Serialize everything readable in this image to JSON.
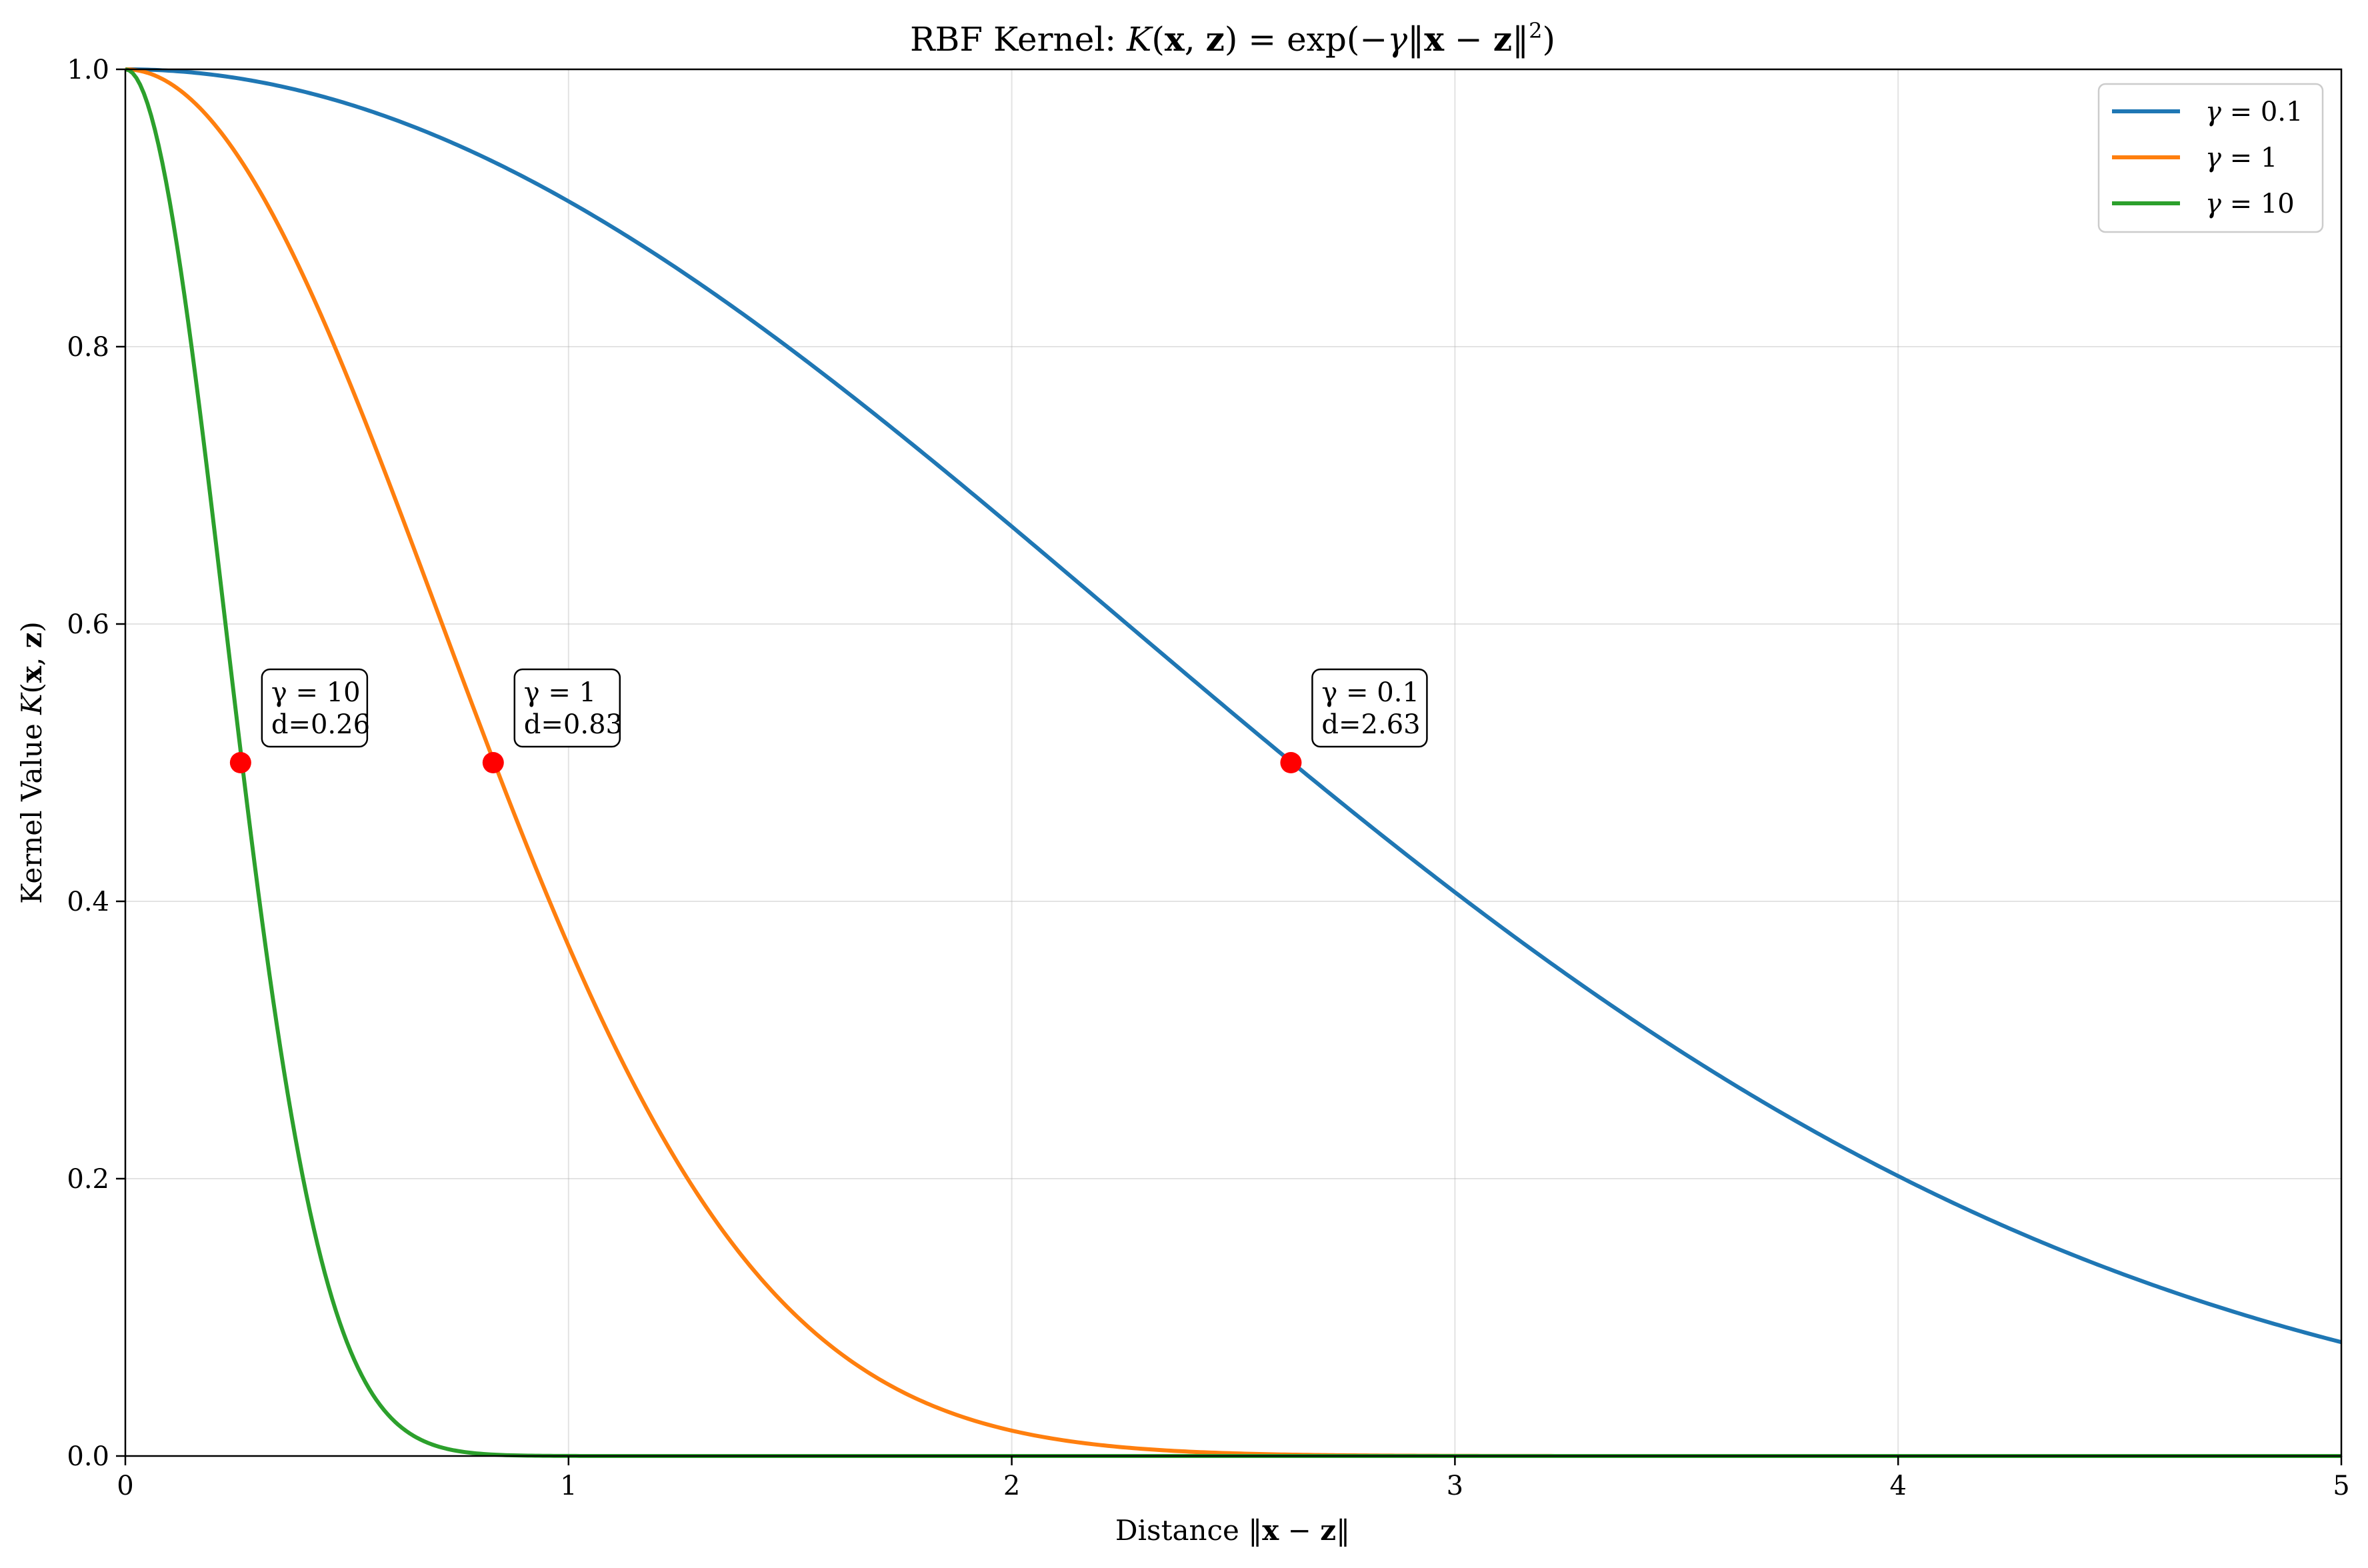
{
  "chart_data": {
    "type": "line",
    "title": {
      "prefix": "RBF Kernel: ",
      "formula_parts": [
        "K",
        "(",
        "x",
        ", ",
        "z",
        ") = exp(−",
        "γ",
        "‖",
        "x",
        " − ",
        "z",
        "‖",
        "2",
        ")"
      ]
    },
    "xlabel": {
      "prefix": "Distance ",
      "formula_parts": [
        "‖",
        "x",
        " − ",
        "z",
        "‖"
      ]
    },
    "ylabel": {
      "prefix": "Kernel Value ",
      "formula_parts": [
        "K",
        "(",
        "x",
        ", ",
        "z",
        ")"
      ]
    },
    "xlim": [
      0,
      5
    ],
    "ylim": [
      0,
      1
    ],
    "xticks": [
      0,
      1,
      2,
      3,
      4,
      5
    ],
    "xtick_labels": [
      "0",
      "1",
      "2",
      "3",
      "4",
      "5"
    ],
    "yticks": [
      0,
      0.2,
      0.4,
      0.6,
      0.8,
      1.0
    ],
    "ytick_labels": [
      "0.0",
      "0.2",
      "0.4",
      "0.6",
      "0.8",
      "1.0"
    ],
    "grid": true,
    "legend_position": "top-right",
    "series": [
      {
        "name": "γ = 0.1",
        "gamma_symbol": "γ",
        "gamma_value": "0.1",
        "gamma": 0.1,
        "color": "#1f77b4"
      },
      {
        "name": "γ = 1",
        "gamma_symbol": "γ",
        "gamma_value": "1",
        "gamma": 1,
        "color": "#ff7f0e"
      },
      {
        "name": "γ = 10",
        "gamma_symbol": "γ",
        "gamma_value": "10",
        "gamma": 10,
        "color": "#2ca02c"
      }
    ],
    "half_points": [
      {
        "x": 0.26,
        "y": 0.5,
        "label_line1": "γ = 10",
        "label_line2": "d=0.26",
        "color": "#ff0000"
      },
      {
        "x": 0.83,
        "y": 0.5,
        "label_line1": "γ = 1",
        "label_line2": "d=0.83",
        "color": "#ff0000"
      },
      {
        "x": 2.63,
        "y": 0.5,
        "label_line1": "γ = 0.1",
        "label_line2": "d=2.63",
        "color": "#ff0000"
      }
    ]
  }
}
